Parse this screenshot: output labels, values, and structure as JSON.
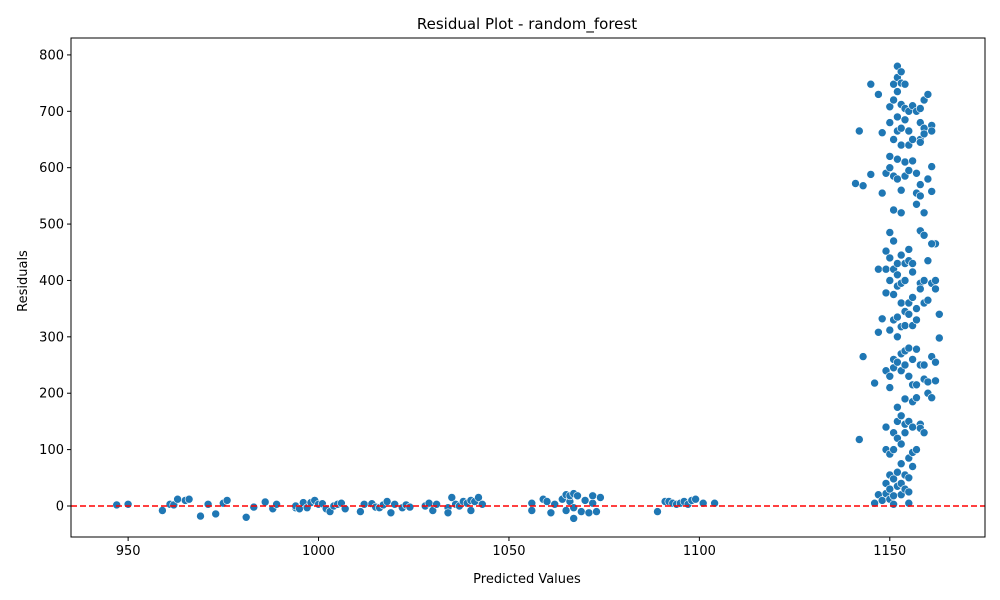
{
  "chart_data": {
    "type": "scatter",
    "title": "Residual Plot - random_forest",
    "xlabel": "Predicted Values",
    "ylabel": "Residuals",
    "xlim": [
      935,
      1175
    ],
    "ylim": [
      -55,
      830
    ],
    "xticks": [
      950,
      1000,
      1050,
      1100,
      1150
    ],
    "yticks": [
      0,
      100,
      200,
      300,
      400,
      500,
      600,
      700,
      800
    ],
    "reference_line": {
      "y": 0,
      "style": "dashed"
    },
    "grid": false,
    "colors": {
      "points": "#1f77b4",
      "reference_line": "#ff0000"
    },
    "points": [
      [
        947,
        2
      ],
      [
        950,
        3
      ],
      [
        959,
        -8
      ],
      [
        961,
        3
      ],
      [
        962,
        2
      ],
      [
        963,
        12
      ],
      [
        965,
        10
      ],
      [
        966,
        12
      ],
      [
        969,
        -18
      ],
      [
        971,
        3
      ],
      [
        973,
        -14
      ],
      [
        975,
        5
      ],
      [
        976,
        10
      ],
      [
        981,
        -20
      ],
      [
        983,
        -2
      ],
      [
        986,
        7
      ],
      [
        988,
        -5
      ],
      [
        989,
        3
      ],
      [
        994,
        -3
      ],
      [
        994,
        0
      ],
      [
        995,
        -5
      ],
      [
        996,
        6
      ],
      [
        997,
        -3
      ],
      [
        998,
        6
      ],
      [
        999,
        10
      ],
      [
        1000,
        3
      ],
      [
        1001,
        4
      ],
      [
        1002,
        -5
      ],
      [
        1003,
        -10
      ],
      [
        1004,
        0
      ],
      [
        1005,
        3
      ],
      [
        1006,
        5
      ],
      [
        1007,
        -5
      ],
      [
        1011,
        -10
      ],
      [
        1012,
        3
      ],
      [
        1014,
        4
      ],
      [
        1015,
        -2
      ],
      [
        1016,
        -3
      ],
      [
        1017,
        2
      ],
      [
        1018,
        8
      ],
      [
        1019,
        -12
      ],
      [
        1020,
        3
      ],
      [
        1022,
        -3
      ],
      [
        1023,
        2
      ],
      [
        1024,
        -2
      ],
      [
        1028,
        0
      ],
      [
        1029,
        5
      ],
      [
        1030,
        -8
      ],
      [
        1031,
        3
      ],
      [
        1034,
        -3
      ],
      [
        1034,
        -12
      ],
      [
        1035,
        15
      ],
      [
        1036,
        3
      ],
      [
        1037,
        0
      ],
      [
        1038,
        8
      ],
      [
        1039,
        5
      ],
      [
        1040,
        -8
      ],
      [
        1040,
        10
      ],
      [
        1041,
        8
      ],
      [
        1042,
        15
      ],
      [
        1043,
        3
      ],
      [
        1056,
        5
      ],
      [
        1056,
        -8
      ],
      [
        1059,
        12
      ],
      [
        1060,
        8
      ],
      [
        1061,
        -12
      ],
      [
        1062,
        3
      ],
      [
        1064,
        12
      ],
      [
        1065,
        20
      ],
      [
        1065,
        -8
      ],
      [
        1066,
        8
      ],
      [
        1066,
        18
      ],
      [
        1067,
        -3
      ],
      [
        1067,
        22
      ],
      [
        1067,
        -22
      ],
      [
        1068,
        18
      ],
      [
        1069,
        -10
      ],
      [
        1070,
        10
      ],
      [
        1071,
        -12
      ],
      [
        1072,
        5
      ],
      [
        1072,
        18
      ],
      [
        1073,
        -10
      ],
      [
        1074,
        15
      ],
      [
        1089,
        -10
      ],
      [
        1091,
        8
      ],
      [
        1092,
        8
      ],
      [
        1093,
        5
      ],
      [
        1094,
        3
      ],
      [
        1095,
        5
      ],
      [
        1096,
        8
      ],
      [
        1097,
        3
      ],
      [
        1098,
        10
      ],
      [
        1099,
        12
      ],
      [
        1101,
        5
      ],
      [
        1104,
        5
      ],
      [
        1141,
        572
      ],
      [
        1142,
        118
      ],
      [
        1142,
        665
      ],
      [
        1143,
        568
      ],
      [
        1143,
        265
      ],
      [
        1145,
        588
      ],
      [
        1145,
        748
      ],
      [
        1146,
        218
      ],
      [
        1146,
        5
      ],
      [
        1147,
        730
      ],
      [
        1147,
        420
      ],
      [
        1147,
        308
      ],
      [
        1147,
        20
      ],
      [
        1148,
        662
      ],
      [
        1148,
        555
      ],
      [
        1148,
        332
      ],
      [
        1148,
        10
      ],
      [
        1149,
        590
      ],
      [
        1149,
        420
      ],
      [
        1149,
        100
      ],
      [
        1149,
        452
      ],
      [
        1149,
        140
      ],
      [
        1149,
        240
      ],
      [
        1149,
        40
      ],
      [
        1149,
        378
      ],
      [
        1149,
        22
      ],
      [
        1150,
        708
      ],
      [
        1150,
        680
      ],
      [
        1150,
        620
      ],
      [
        1150,
        600
      ],
      [
        1150,
        485
      ],
      [
        1150,
        440
      ],
      [
        1150,
        400
      ],
      [
        1150,
        312
      ],
      [
        1150,
        230
      ],
      [
        1150,
        210
      ],
      [
        1150,
        92
      ],
      [
        1150,
        55
      ],
      [
        1150,
        30
      ],
      [
        1150,
        12
      ],
      [
        1151,
        748
      ],
      [
        1151,
        720
      ],
      [
        1151,
        650
      ],
      [
        1151,
        585
      ],
      [
        1151,
        525
      ],
      [
        1151,
        470
      ],
      [
        1151,
        420
      ],
      [
        1151,
        375
      ],
      [
        1151,
        330
      ],
      [
        1151,
        260
      ],
      [
        1151,
        245
      ],
      [
        1151,
        130
      ],
      [
        1151,
        100
      ],
      [
        1151,
        48
      ],
      [
        1151,
        18
      ],
      [
        1151,
        3
      ],
      [
        1152,
        780
      ],
      [
        1152,
        760
      ],
      [
        1152,
        735
      ],
      [
        1152,
        690
      ],
      [
        1152,
        665
      ],
      [
        1152,
        615
      ],
      [
        1152,
        580
      ],
      [
        1152,
        430
      ],
      [
        1152,
        410
      ],
      [
        1152,
        390
      ],
      [
        1152,
        335
      ],
      [
        1152,
        300
      ],
      [
        1152,
        255
      ],
      [
        1152,
        175
      ],
      [
        1152,
        150
      ],
      [
        1152,
        120
      ],
      [
        1152,
        60
      ],
      [
        1152,
        35
      ],
      [
        1153,
        770
      ],
      [
        1153,
        750
      ],
      [
        1153,
        712
      ],
      [
        1153,
        670
      ],
      [
        1153,
        640
      ],
      [
        1153,
        560
      ],
      [
        1153,
        520
      ],
      [
        1153,
        445
      ],
      [
        1153,
        395
      ],
      [
        1153,
        360
      ],
      [
        1153,
        318
      ],
      [
        1153,
        270
      ],
      [
        1153,
        240
      ],
      [
        1153,
        160
      ],
      [
        1153,
        110
      ],
      [
        1153,
        75
      ],
      [
        1153,
        40
      ],
      [
        1153,
        20
      ],
      [
        1154,
        748
      ],
      [
        1154,
        705
      ],
      [
        1154,
        685
      ],
      [
        1154,
        610
      ],
      [
        1154,
        585
      ],
      [
        1154,
        430
      ],
      [
        1154,
        400
      ],
      [
        1154,
        345
      ],
      [
        1154,
        320
      ],
      [
        1154,
        275
      ],
      [
        1154,
        250
      ],
      [
        1154,
        190
      ],
      [
        1154,
        145
      ],
      [
        1154,
        130
      ],
      [
        1154,
        55
      ],
      [
        1154,
        30
      ],
      [
        1155,
        700
      ],
      [
        1155,
        665
      ],
      [
        1155,
        640
      ],
      [
        1155,
        595
      ],
      [
        1155,
        455
      ],
      [
        1155,
        435
      ],
      [
        1155,
        360
      ],
      [
        1155,
        340
      ],
      [
        1155,
        280
      ],
      [
        1155,
        230
      ],
      [
        1155,
        150
      ],
      [
        1155,
        85
      ],
      [
        1155,
        50
      ],
      [
        1155,
        25
      ],
      [
        1155,
        5
      ],
      [
        1156,
        710
      ],
      [
        1156,
        650
      ],
      [
        1156,
        612
      ],
      [
        1156,
        430
      ],
      [
        1156,
        415
      ],
      [
        1156,
        370
      ],
      [
        1156,
        320
      ],
      [
        1156,
        260
      ],
      [
        1156,
        215
      ],
      [
        1156,
        185
      ],
      [
        1156,
        140
      ],
      [
        1156,
        95
      ],
      [
        1156,
        70
      ],
      [
        1157,
        700
      ],
      [
        1157,
        590
      ],
      [
        1157,
        555
      ],
      [
        1157,
        535
      ],
      [
        1157,
        350
      ],
      [
        1157,
        330
      ],
      [
        1157,
        278
      ],
      [
        1157,
        215
      ],
      [
        1157,
        192
      ],
      [
        1157,
        100
      ],
      [
        1158,
        705
      ],
      [
        1158,
        680
      ],
      [
        1158,
        650
      ],
      [
        1158,
        645
      ],
      [
        1158,
        570
      ],
      [
        1158,
        550
      ],
      [
        1158,
        488
      ],
      [
        1158,
        395
      ],
      [
        1158,
        385
      ],
      [
        1158,
        250
      ],
      [
        1158,
        145
      ],
      [
        1158,
        138
      ],
      [
        1159,
        720
      ],
      [
        1159,
        670
      ],
      [
        1159,
        660
      ],
      [
        1159,
        520
      ],
      [
        1159,
        480
      ],
      [
        1159,
        400
      ],
      [
        1159,
        360
      ],
      [
        1159,
        250
      ],
      [
        1159,
        225
      ],
      [
        1159,
        130
      ],
      [
        1160,
        730
      ],
      [
        1160,
        580
      ],
      [
        1160,
        435
      ],
      [
        1160,
        365
      ],
      [
        1160,
        220
      ],
      [
        1160,
        200
      ],
      [
        1161,
        675
      ],
      [
        1161,
        665
      ],
      [
        1161,
        602
      ],
      [
        1161,
        558
      ],
      [
        1161,
        395
      ],
      [
        1161,
        265
      ],
      [
        1161,
        192
      ],
      [
        1162,
        465
      ],
      [
        1162,
        400
      ],
      [
        1162,
        385
      ],
      [
        1162,
        222
      ],
      [
        1163,
        340
      ],
      [
        1163,
        298
      ],
      [
        1162,
        255
      ],
      [
        1161,
        465
      ]
    ]
  }
}
